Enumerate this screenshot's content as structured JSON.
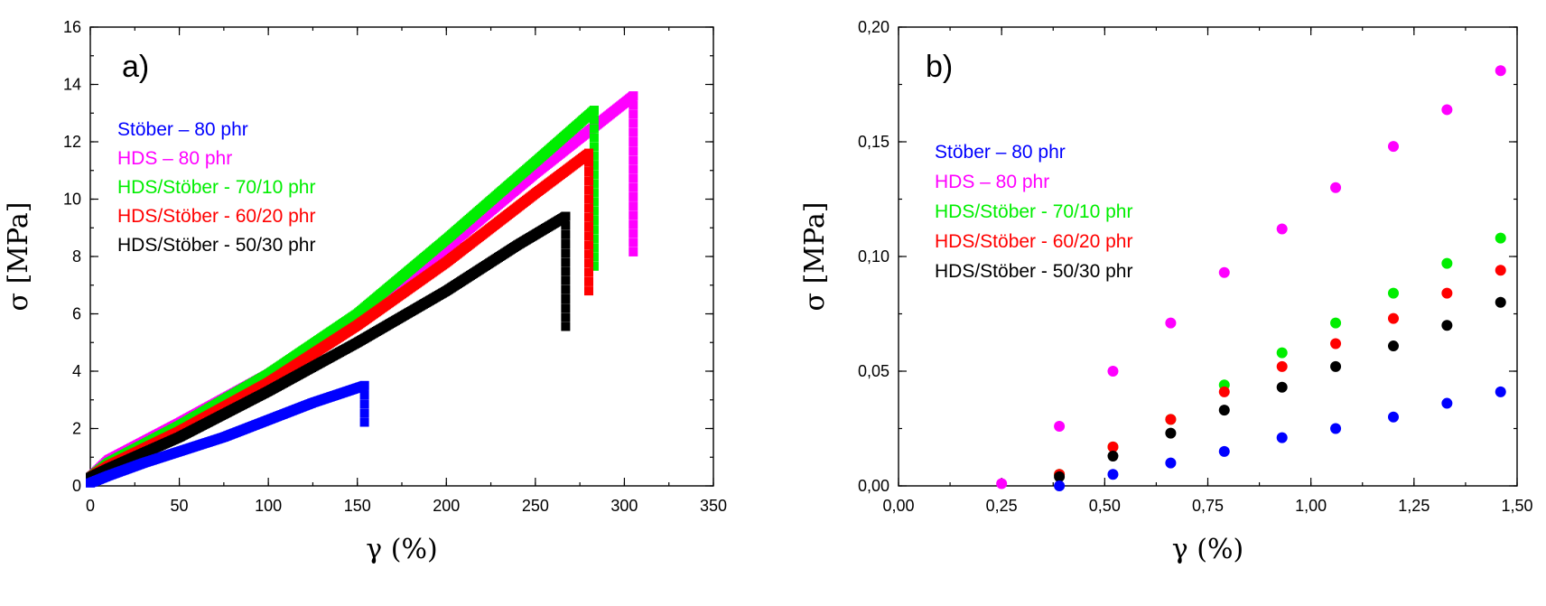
{
  "chart_data": [
    {
      "type": "scatter",
      "panel_label": "a)",
      "xlabel": "γ (%)",
      "ylabel": "σ [MPa]",
      "xlim": [
        0,
        350
      ],
      "ylim": [
        0,
        16
      ],
      "xticks": [
        0,
        50,
        100,
        150,
        200,
        250,
        300,
        350
      ],
      "xtick_labels": [
        "0",
        "50",
        "100",
        "150",
        "200",
        "250",
        "300",
        "350"
      ],
      "yticks": [
        0,
        2,
        4,
        6,
        8,
        10,
        12,
        14,
        16
      ],
      "ytick_labels": [
        "0",
        "2",
        "4",
        "6",
        "8",
        "10",
        "12",
        "14",
        "16"
      ],
      "marker": "square",
      "legend_position": "upper-left",
      "series": [
        {
          "name": "HDS – 80 phr",
          "color": "#ff00ff",
          "curve": [
            [
              0,
              0.3
            ],
            [
              10,
              0.9
            ],
            [
              50,
              2.2
            ],
            [
              100,
              3.9
            ],
            [
              150,
              5.9
            ],
            [
              200,
              8.3
            ],
            [
              250,
              10.9
            ],
            [
              305,
              13.6
            ]
          ],
          "drop": [
            305,
            13.6,
            8.0
          ]
        },
        {
          "name": "HDS/Stöber - 70/10 phr",
          "color": "#00ee00",
          "curve": [
            [
              0,
              0.3
            ],
            [
              10,
              0.8
            ],
            [
              50,
              2.1
            ],
            [
              100,
              3.9
            ],
            [
              150,
              6.0
            ],
            [
              200,
              8.6
            ],
            [
              250,
              11.3
            ],
            [
              283,
              13.1
            ]
          ],
          "drop": [
            283,
            13.1,
            7.5
          ]
        },
        {
          "name": "HDS/Stöber - 60/20 phr",
          "color": "#ff0000",
          "curve": [
            [
              0,
              0.3
            ],
            [
              10,
              0.7
            ],
            [
              50,
              1.9
            ],
            [
              100,
              3.6
            ],
            [
              150,
              5.6
            ],
            [
              200,
              7.8
            ],
            [
              250,
              10.2
            ],
            [
              280,
              11.6
            ]
          ],
          "drop": [
            280,
            11.6,
            6.6
          ]
        },
        {
          "name": "HDS/Stöber - 50/30 phr",
          "color": "#000000",
          "curve": [
            [
              0,
              0.3
            ],
            [
              10,
              0.6
            ],
            [
              50,
              1.7
            ],
            [
              100,
              3.3
            ],
            [
              150,
              5.0
            ],
            [
              200,
              6.8
            ],
            [
              240,
              8.4
            ],
            [
              267,
              9.4
            ]
          ],
          "drop": [
            267,
            9.4,
            5.4
          ]
        },
        {
          "name": "Stöber – 80 phr",
          "color": "#0000ff",
          "curve": [
            [
              0,
              0.1
            ],
            [
              10,
              0.35
            ],
            [
              30,
              0.8
            ],
            [
              50,
              1.2
            ],
            [
              75,
              1.7
            ],
            [
              100,
              2.3
            ],
            [
              125,
              2.9
            ],
            [
              154,
              3.5
            ]
          ],
          "drop": [
            154,
            3.5,
            2.0
          ]
        }
      ],
      "legend": [
        {
          "label": "Stöber – 80 phr",
          "color": "#0000ff"
        },
        {
          "label": "HDS – 80 phr",
          "color": "#ff00ff"
        },
        {
          "label": "HDS/Stöber - 70/10 phr",
          "color": "#00ee00"
        },
        {
          "label": "HDS/Stöber - 60/20 phr",
          "color": "#ff0000"
        },
        {
          "label": "HDS/Stöber - 50/30 phr",
          "color": "#000000"
        }
      ]
    },
    {
      "type": "scatter",
      "panel_label": "b)",
      "xlabel": "γ (%)",
      "ylabel": "σ [MPa]",
      "xlim": [
        0,
        1.5
      ],
      "ylim": [
        0,
        0.2
      ],
      "xticks": [
        0,
        0.25,
        0.5,
        0.75,
        1.0,
        1.25,
        1.5
      ],
      "xtick_labels": [
        "0,00",
        "0,25",
        "0,50",
        "0,75",
        "1,00",
        "1,25",
        "1,50"
      ],
      "yticks": [
        0,
        0.05,
        0.1,
        0.15,
        0.2
      ],
      "ytick_labels": [
        "0,00",
        "0,05",
        "0,10",
        "0,15",
        "0,20"
      ],
      "marker": "circle",
      "legend_position": "center-left",
      "series": [
        {
          "name": "HDS – 80 phr",
          "color": "#ff00ff",
          "x": [
            0.25,
            0.39,
            0.52,
            0.66,
            0.79,
            0.93,
            1.06,
            1.2,
            1.33,
            1.46
          ],
          "y": [
            0.001,
            0.026,
            0.05,
            0.071,
            0.093,
            0.112,
            0.13,
            0.148,
            0.164,
            0.181
          ]
        },
        {
          "name": "HDS/Stöber - 70/10 phr",
          "color": "#00ee00",
          "x": [
            0.39,
            0.52,
            0.66,
            0.79,
            0.93,
            1.06,
            1.2,
            1.33,
            1.46
          ],
          "y": [
            0.005,
            0.017,
            0.029,
            0.044,
            0.058,
            0.071,
            0.084,
            0.097,
            0.108
          ]
        },
        {
          "name": "HDS/Stöber - 60/20 phr",
          "color": "#ff0000",
          "x": [
            0.39,
            0.52,
            0.66,
            0.79,
            0.93,
            1.06,
            1.2,
            1.33,
            1.46
          ],
          "y": [
            0.005,
            0.017,
            0.029,
            0.041,
            0.052,
            0.062,
            0.073,
            0.084,
            0.094
          ]
        },
        {
          "name": "HDS/Stöber - 50/30 phr",
          "color": "#000000",
          "x": [
            0.39,
            0.52,
            0.66,
            0.79,
            0.93,
            1.06,
            1.2,
            1.33,
            1.46
          ],
          "y": [
            0.004,
            0.013,
            0.023,
            0.033,
            0.043,
            0.052,
            0.061,
            0.07,
            0.08
          ]
        },
        {
          "name": "Stöber – 80 phr",
          "color": "#0000ff",
          "x": [
            0.39,
            0.52,
            0.66,
            0.79,
            0.93,
            1.06,
            1.2,
            1.33,
            1.46
          ],
          "y": [
            0.0,
            0.005,
            0.01,
            0.015,
            0.021,
            0.025,
            0.03,
            0.036,
            0.041
          ]
        }
      ],
      "legend": [
        {
          "label": "Stöber – 80 phr",
          "color": "#0000ff"
        },
        {
          "label": "HDS – 80 phr",
          "color": "#ff00ff"
        },
        {
          "label": "HDS/Stöber - 70/10 phr",
          "color": "#00ee00"
        },
        {
          "label": "HDS/Stöber - 60/20 phr",
          "color": "#ff0000"
        },
        {
          "label": "HDS/Stöber - 50/30 phr",
          "color": "#000000"
        }
      ]
    }
  ]
}
